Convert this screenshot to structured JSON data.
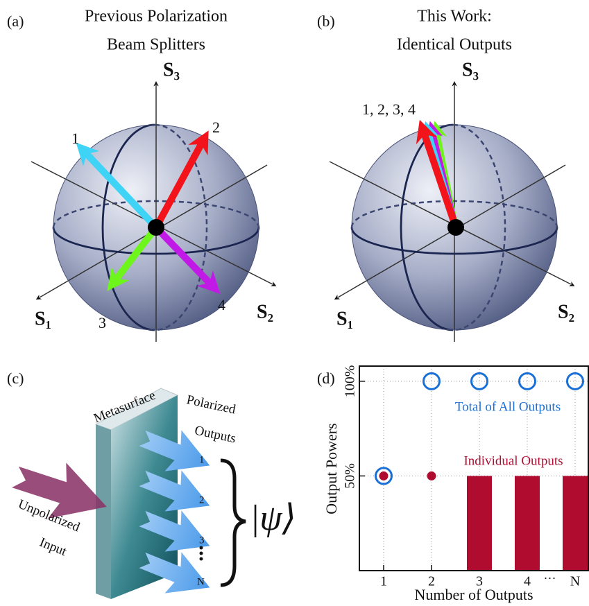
{
  "panel_a": {
    "label": "(a)",
    "title": [
      "Previous Polarization",
      "Beam Splitters"
    ],
    "axes": [
      "S₁",
      "S₂",
      "S₃"
    ],
    "arrow_labels": [
      "1",
      "2",
      "3",
      "4"
    ]
  },
  "panel_b": {
    "label": "(b)",
    "title": [
      "This Work:",
      "Identical Outputs"
    ],
    "axes": [
      "S₁",
      "S₂",
      "S₃"
    ],
    "arrow_label": "1, 2, 3, 4"
  },
  "panel_c": {
    "label": "(c)",
    "surface": "Metasurface",
    "output_label": [
      "Polarized",
      "Outputs"
    ],
    "input_label": [
      "Unpolarized",
      "Input"
    ],
    "outputs": [
      "1",
      "2",
      "3",
      "N"
    ],
    "state": "|ψ⟩"
  },
  "chart_data": {
    "type": "bar",
    "panel_label": "(d)",
    "x_label": "Number of Outputs",
    "y_label": "Output Powers",
    "categories": [
      "1",
      "2",
      "3",
      "4",
      "N"
    ],
    "annotations": [
      "···"
    ],
    "series": [
      {
        "name": "Total of All Outputs",
        "color": "#1a6fd6",
        "marker": "ring",
        "values": [
          50,
          100,
          100,
          100,
          100
        ]
      },
      {
        "name": "Individual Outputs",
        "color": "#b00c30",
        "markers": [
          "dot",
          "dot",
          "bar",
          "bar",
          "bar"
        ],
        "values": [
          50,
          50,
          50,
          50,
          50
        ]
      }
    ],
    "ylim": [
      0,
      108
    ],
    "yticks": [
      {
        "value": 50,
        "label": "50%"
      },
      {
        "value": 100,
        "label": "100%"
      }
    ],
    "grid": true
  }
}
